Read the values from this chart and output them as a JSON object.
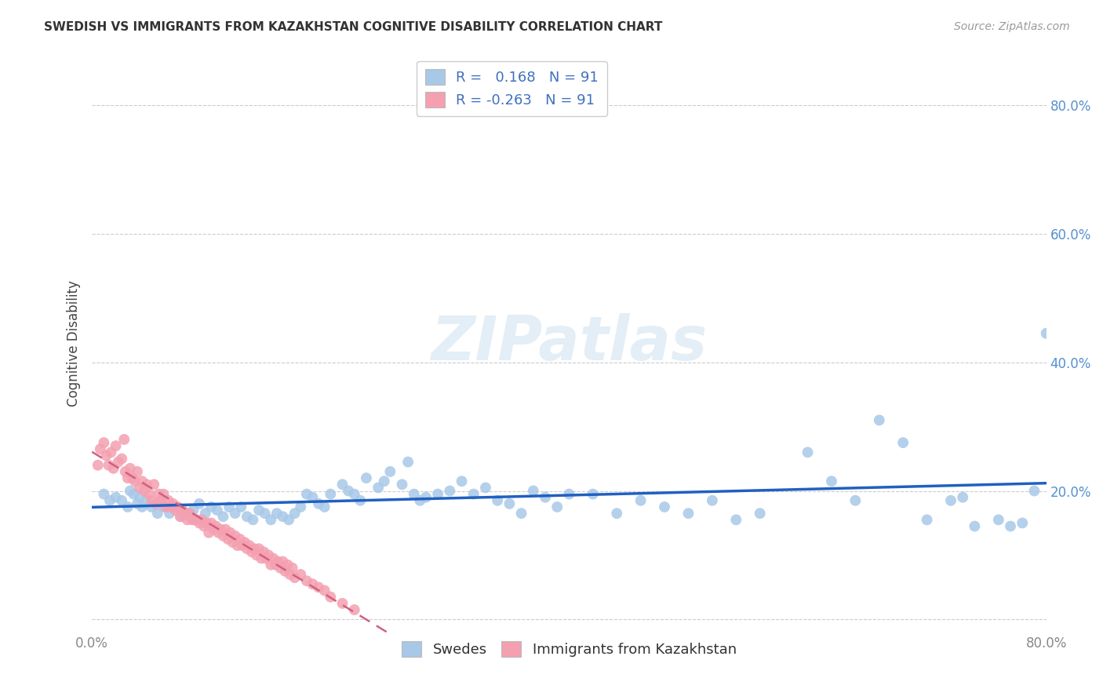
{
  "title": "SWEDISH VS IMMIGRANTS FROM KAZAKHSTAN COGNITIVE DISABILITY CORRELATION CHART",
  "source": "Source: ZipAtlas.com",
  "ylabel": "Cognitive Disability",
  "xlim": [
    0.0,
    0.8
  ],
  "ylim": [
    -0.02,
    0.88
  ],
  "yticks": [
    0.0,
    0.2,
    0.4,
    0.6,
    0.8
  ],
  "ytick_labels": [
    "",
    "20.0%",
    "40.0%",
    "60.0%",
    "80.0%"
  ],
  "xticks": [
    0.0,
    0.2,
    0.4,
    0.6,
    0.8
  ],
  "xtick_labels": [
    "0.0%",
    "",
    "",
    "",
    "80.0%"
  ],
  "blue_R": 0.168,
  "blue_N": 91,
  "pink_R": -0.263,
  "pink_N": 91,
  "blue_color": "#a8c8e8",
  "pink_color": "#f4a0b0",
  "blue_line_color": "#2060c0",
  "pink_line_color": "#d06080",
  "grid_color": "#cccccc",
  "watermark": "ZIPatlas",
  "blue_scatter_x": [
    0.01,
    0.015,
    0.02,
    0.025,
    0.03,
    0.032,
    0.035,
    0.038,
    0.04,
    0.042,
    0.045,
    0.05,
    0.055,
    0.058,
    0.06,
    0.065,
    0.07,
    0.075,
    0.08,
    0.085,
    0.09,
    0.095,
    0.1,
    0.105,
    0.11,
    0.115,
    0.12,
    0.125,
    0.13,
    0.135,
    0.14,
    0.145,
    0.15,
    0.155,
    0.16,
    0.165,
    0.17,
    0.175,
    0.18,
    0.185,
    0.19,
    0.195,
    0.2,
    0.21,
    0.215,
    0.22,
    0.225,
    0.23,
    0.24,
    0.245,
    0.25,
    0.26,
    0.265,
    0.27,
    0.275,
    0.28,
    0.29,
    0.3,
    0.31,
    0.32,
    0.33,
    0.34,
    0.35,
    0.36,
    0.37,
    0.38,
    0.39,
    0.4,
    0.42,
    0.44,
    0.46,
    0.48,
    0.5,
    0.52,
    0.54,
    0.56,
    0.6,
    0.62,
    0.64,
    0.66,
    0.68,
    0.7,
    0.72,
    0.73,
    0.74,
    0.76,
    0.77,
    0.78,
    0.79,
    0.8,
    0.805
  ],
  "blue_scatter_y": [
    0.195,
    0.185,
    0.19,
    0.185,
    0.175,
    0.2,
    0.195,
    0.18,
    0.19,
    0.175,
    0.185,
    0.175,
    0.165,
    0.185,
    0.175,
    0.165,
    0.175,
    0.16,
    0.165,
    0.17,
    0.18,
    0.165,
    0.175,
    0.17,
    0.16,
    0.175,
    0.165,
    0.175,
    0.16,
    0.155,
    0.17,
    0.165,
    0.155,
    0.165,
    0.16,
    0.155,
    0.165,
    0.175,
    0.195,
    0.19,
    0.18,
    0.175,
    0.195,
    0.21,
    0.2,
    0.195,
    0.185,
    0.22,
    0.205,
    0.215,
    0.23,
    0.21,
    0.245,
    0.195,
    0.185,
    0.19,
    0.195,
    0.2,
    0.215,
    0.195,
    0.205,
    0.185,
    0.18,
    0.165,
    0.2,
    0.19,
    0.175,
    0.195,
    0.195,
    0.165,
    0.185,
    0.175,
    0.165,
    0.185,
    0.155,
    0.165,
    0.26,
    0.215,
    0.185,
    0.31,
    0.275,
    0.155,
    0.185,
    0.19,
    0.145,
    0.155,
    0.145,
    0.15,
    0.2,
    0.445,
    0.21
  ],
  "pink_scatter_x": [
    0.005,
    0.007,
    0.01,
    0.012,
    0.014,
    0.016,
    0.018,
    0.02,
    0.022,
    0.025,
    0.027,
    0.028,
    0.03,
    0.032,
    0.034,
    0.036,
    0.038,
    0.04,
    0.042,
    0.044,
    0.046,
    0.048,
    0.05,
    0.052,
    0.054,
    0.056,
    0.058,
    0.06,
    0.062,
    0.064,
    0.066,
    0.068,
    0.07,
    0.072,
    0.074,
    0.076,
    0.078,
    0.08,
    0.082,
    0.084,
    0.086,
    0.088,
    0.09,
    0.092,
    0.094,
    0.096,
    0.098,
    0.1,
    0.102,
    0.104,
    0.106,
    0.108,
    0.11,
    0.112,
    0.114,
    0.116,
    0.118,
    0.12,
    0.122,
    0.124,
    0.126,
    0.128,
    0.13,
    0.132,
    0.134,
    0.136,
    0.138,
    0.14,
    0.142,
    0.144,
    0.146,
    0.148,
    0.15,
    0.152,
    0.154,
    0.156,
    0.158,
    0.16,
    0.162,
    0.164,
    0.166,
    0.168,
    0.17,
    0.175,
    0.18,
    0.185,
    0.19,
    0.195,
    0.2,
    0.21,
    0.22
  ],
  "pink_scatter_y": [
    0.24,
    0.265,
    0.275,
    0.255,
    0.24,
    0.26,
    0.235,
    0.27,
    0.245,
    0.25,
    0.28,
    0.23,
    0.22,
    0.235,
    0.22,
    0.215,
    0.23,
    0.205,
    0.215,
    0.2,
    0.21,
    0.195,
    0.185,
    0.21,
    0.18,
    0.195,
    0.185,
    0.195,
    0.175,
    0.185,
    0.175,
    0.18,
    0.17,
    0.175,
    0.16,
    0.17,
    0.165,
    0.155,
    0.165,
    0.155,
    0.155,
    0.155,
    0.15,
    0.155,
    0.145,
    0.15,
    0.135,
    0.15,
    0.14,
    0.145,
    0.135,
    0.14,
    0.13,
    0.14,
    0.125,
    0.135,
    0.12,
    0.13,
    0.115,
    0.125,
    0.115,
    0.12,
    0.11,
    0.115,
    0.105,
    0.11,
    0.1,
    0.11,
    0.095,
    0.105,
    0.095,
    0.1,
    0.085,
    0.095,
    0.085,
    0.09,
    0.08,
    0.09,
    0.075,
    0.085,
    0.07,
    0.08,
    0.065,
    0.07,
    0.06,
    0.055,
    0.05,
    0.045,
    0.035,
    0.025,
    0.015
  ]
}
